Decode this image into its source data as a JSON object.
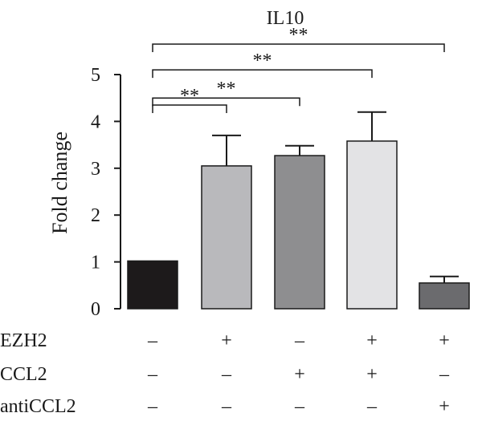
{
  "chart_data": {
    "type": "bar",
    "title": "IL10",
    "ylabel": "Fold change",
    "xlabel": "",
    "ylim": [
      0,
      5
    ],
    "yticks": [
      "0",
      "1",
      "2",
      "3",
      "4",
      "5"
    ],
    "bars": [
      {
        "value": 1.02,
        "error": 0.0,
        "color": "#1d1a1b"
      },
      {
        "value": 3.05,
        "error": 0.65,
        "color": "#b9b9bc"
      },
      {
        "value": 3.27,
        "error": 0.21,
        "color": "#8e8e90"
      },
      {
        "value": 3.58,
        "error": 0.62,
        "color": "#e3e3e5"
      },
      {
        "value": 0.55,
        "error": 0.14,
        "color": "#6b6b6e"
      }
    ],
    "conditions": [
      {
        "label": "EZH2",
        "signs": [
          "–",
          "+",
          "–",
          "+",
          "+"
        ]
      },
      {
        "label": "CCL2",
        "signs": [
          "–",
          "–",
          "+",
          "+",
          "–"
        ]
      },
      {
        "label": "antiCCL2",
        "signs": [
          "–",
          "–",
          "–",
          "–",
          "+"
        ]
      }
    ],
    "significance": [
      {
        "from": 0,
        "to": 1,
        "label": "**",
        "level": 4.35
      },
      {
        "from": 0,
        "to": 2,
        "label": "**",
        "level": 4.5
      },
      {
        "from": 0,
        "to": 3,
        "label": "**",
        "level": 5.1
      },
      {
        "from": 0,
        "to": 4,
        "label": "**",
        "level": 5.65
      }
    ]
  }
}
